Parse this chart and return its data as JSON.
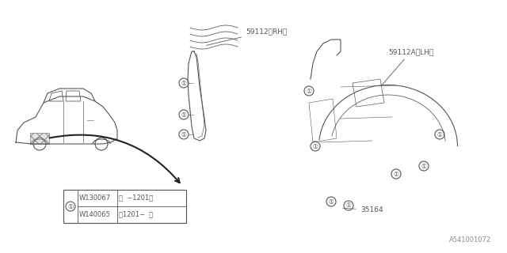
{
  "title": "",
  "bg_color": "#ffffff",
  "diagram_id": "A541001072",
  "part_label_1": "59112〈RH〉",
  "part_label_2": "59112A〈LH〉",
  "part_num_35164": "35164",
  "legend_circle": "①",
  "legend_row1_part": "W130067",
  "legend_row1_date": "（  −1201）",
  "legend_row2_part": "W140065",
  "legend_row2_date": "（1201−  ）",
  "text_color": "#555555",
  "line_color": "#555555",
  "line_width": 0.8
}
